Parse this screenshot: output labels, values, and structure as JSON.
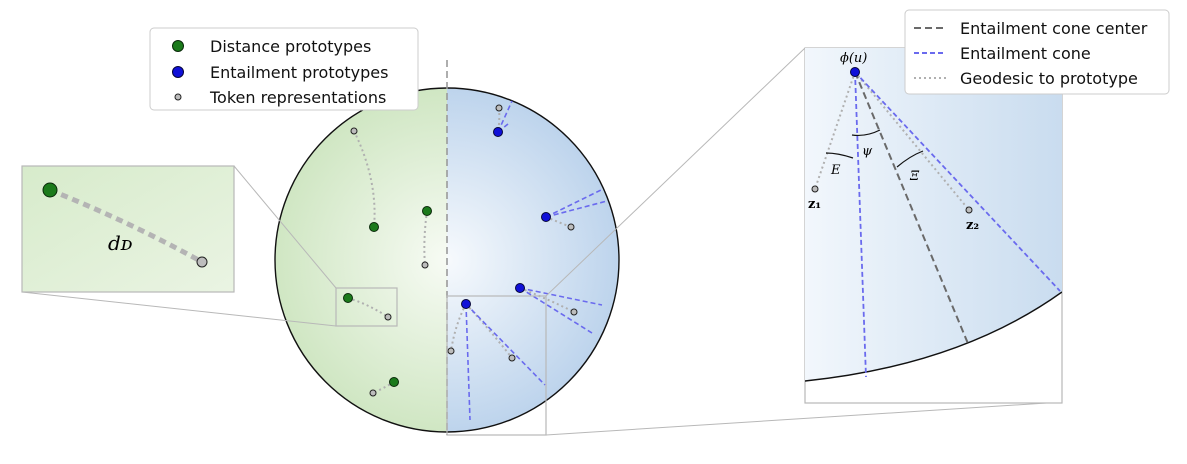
{
  "legend_left": {
    "items": [
      {
        "label": "Distance prototypes",
        "marker": "green-dot",
        "color": "#1b7a1b"
      },
      {
        "label": "Entailment prototypes",
        "marker": "blue-dot",
        "color": "#1010d8"
      },
      {
        "label": "Token representations",
        "marker": "gray-dot",
        "color": "#b5b5b5"
      }
    ]
  },
  "legend_right": {
    "items": [
      {
        "label": "Entailment cone center",
        "line": "dashed",
        "color": "#6a6a6a"
      },
      {
        "label": "Entailment cone",
        "line": "dashed",
        "color": "#6a6aee"
      },
      {
        "label": "Geodesic to prototype",
        "line": "dotted",
        "color": "#b0b0b0"
      }
    ]
  },
  "left_inset": {
    "distance_label": "dᴅ"
  },
  "right_inset": {
    "phi_label": "ϕ(u)",
    "E_label": "E",
    "psi_label": "ψ",
    "xi_label": "Ξ",
    "z1_label": "z₁",
    "z2_label": "z₂"
  },
  "colors": {
    "green_region": "#dfeed6",
    "blue_region": "#cddff0",
    "green_dot": "#1b7a1b",
    "blue_dot": "#1010d8",
    "token_dot": "#bdbdbd",
    "cone_line": "#6a6aee",
    "center_line": "#6a6a6a",
    "geodesic": "#b0b0b0",
    "box_outline": "#b8b8b8"
  }
}
